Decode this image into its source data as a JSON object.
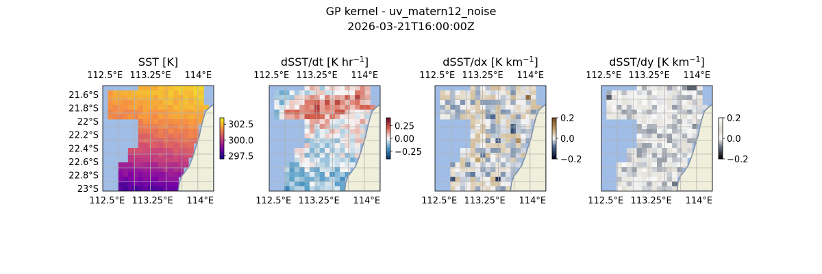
{
  "figure": {
    "title_line1": "GP kernel - uv_matern12_noise",
    "title_line2": "2026-03-21T16:00:00Z"
  },
  "colors": {
    "ocean": "#9fbde6",
    "land": "#efefdb",
    "coast": "#7f8fa6",
    "grid": "#b0b0b0",
    "frame": "#000000"
  },
  "chart_data": [
    {
      "type": "heatmap",
      "title": "SST [K]",
      "title_base": "SST [K]",
      "title_sup": "",
      "colormap": "plasma",
      "vmin": 297.0,
      "vmax": 303.5,
      "colorbar_ticks": [
        302.5,
        300.0,
        297.5
      ],
      "colorbar_tick_labels": [
        "302.5",
        "300.0",
        "297.5"
      ],
      "x_ticks": [
        "112.5°E",
        "113.25°E",
        "114°E"
      ],
      "y_ticks": [
        "21.6°S",
        "21.8°S",
        "22°S",
        "22.2°S",
        "22.4°S",
        "22.6°S",
        "22.8°S",
        "23°S"
      ],
      "show_y_ticks": true,
      "xlim": [
        112.5,
        114.25
      ],
      "ylim": [
        -23.0,
        -21.45
      ],
      "field_description": "warm (≈302.5 K) in the north-east, cooling to ≈298 K in the south near the coast"
    },
    {
      "type": "heatmap",
      "title": "dSST/dt [K hr⁻¹]",
      "title_base": "dSST/dt [K hr",
      "title_sup": "−1",
      "colormap": "RdBu_r",
      "vmin": -0.4,
      "vmax": 0.4,
      "colorbar_ticks": [
        0.25,
        0.0,
        -0.25
      ],
      "colorbar_tick_labels": [
        "0.25",
        "0.00",
        "−0.25"
      ],
      "x_ticks": [
        "112.5°E",
        "113.25°E",
        "114°E"
      ],
      "show_y_ticks": false,
      "xlim": [
        112.5,
        114.25
      ],
      "ylim": [
        -23.0,
        -21.45
      ]
    },
    {
      "type": "heatmap",
      "title": "dSST/dx [K km⁻¹]",
      "title_base": "dSST/dx [K km",
      "title_sup": "−1",
      "colormap": "BrBG-like diverging",
      "vmin": -0.2,
      "vmax": 0.2,
      "colorbar_ticks": [
        0.2,
        0.0,
        -0.2
      ],
      "colorbar_tick_labels": [
        "0.2",
        "0.0",
        "−0.2"
      ],
      "x_ticks": [
        "112.5°E",
        "113.25°E",
        "114°E"
      ],
      "show_y_ticks": false,
      "xlim": [
        112.5,
        114.25
      ],
      "ylim": [
        -23.0,
        -21.45
      ]
    },
    {
      "type": "heatmap",
      "title": "dSST/dy [K km⁻¹]",
      "title_base": "dSST/dy [K km",
      "title_sup": "−1",
      "colormap": "gray-like diverging",
      "vmin": -0.2,
      "vmax": 0.2,
      "colorbar_ticks": [
        0.2,
        0.0,
        -0.2
      ],
      "colorbar_tick_labels": [
        "0.2",
        "0.0",
        "−0.2"
      ],
      "x_ticks": [
        "112.5°E",
        "113.25°E",
        "114°E"
      ],
      "show_y_ticks": false,
      "xlim": [
        112.5,
        114.25
      ],
      "ylim": [
        -23.0,
        -21.45
      ]
    }
  ]
}
